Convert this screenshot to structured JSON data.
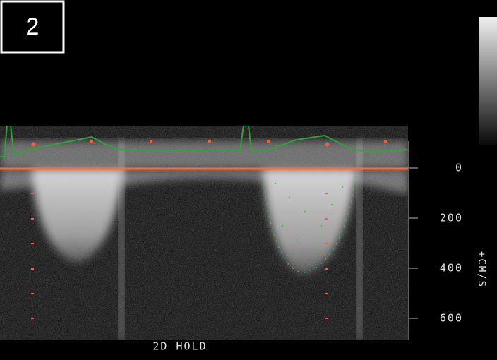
{
  "panel": {
    "number": "2"
  },
  "scale": {
    "unit": "+CM/S",
    "ticks": [
      0,
      200,
      400,
      600
    ]
  },
  "status": "2D HOLD"
}
